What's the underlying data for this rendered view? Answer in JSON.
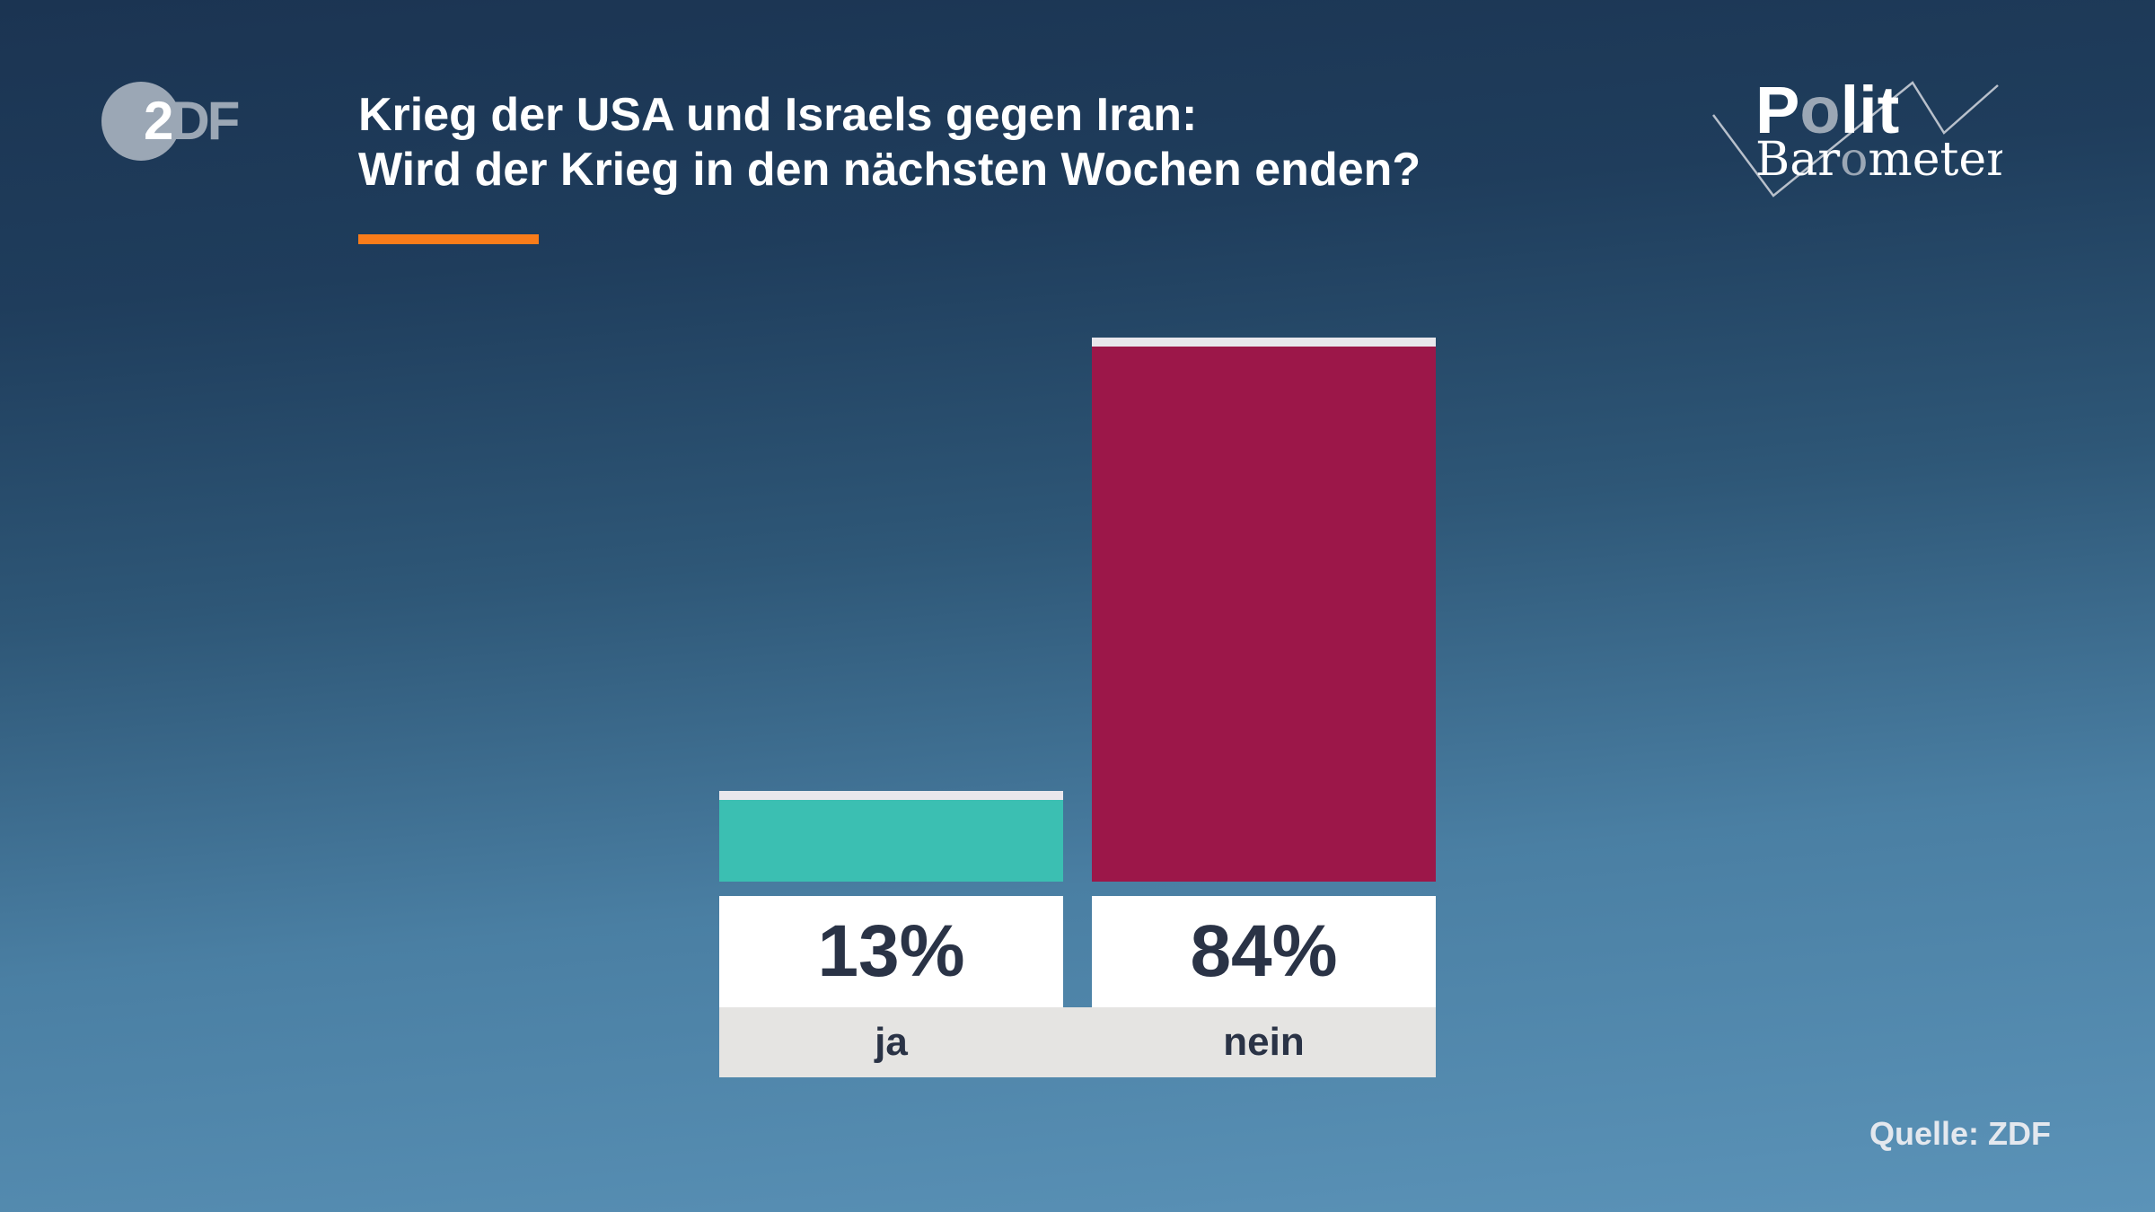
{
  "logo": {
    "text_left": "2",
    "text_right": "DF"
  },
  "title": "Krieg der USA und Israels gegen Iran:\nWird der Krieg in den nächsten Wochen enden?",
  "brand": {
    "line1_a": "P",
    "line1_b": "o",
    "line1_c": "lit",
    "line2_a": "Bar",
    "line2_b": "o",
    "line2_c": "meter"
  },
  "colors": {
    "accent": "#f97c1a",
    "ja": "#3bbfb2",
    "nein": "#9c1749"
  },
  "chart_data": {
    "type": "bar",
    "categories": [
      "ja",
      "nein"
    ],
    "values": [
      13,
      84
    ],
    "value_labels": [
      "13%",
      "84%"
    ],
    "ylim": [
      0,
      100
    ],
    "grid": false
  },
  "source": "Quelle: ZDF"
}
